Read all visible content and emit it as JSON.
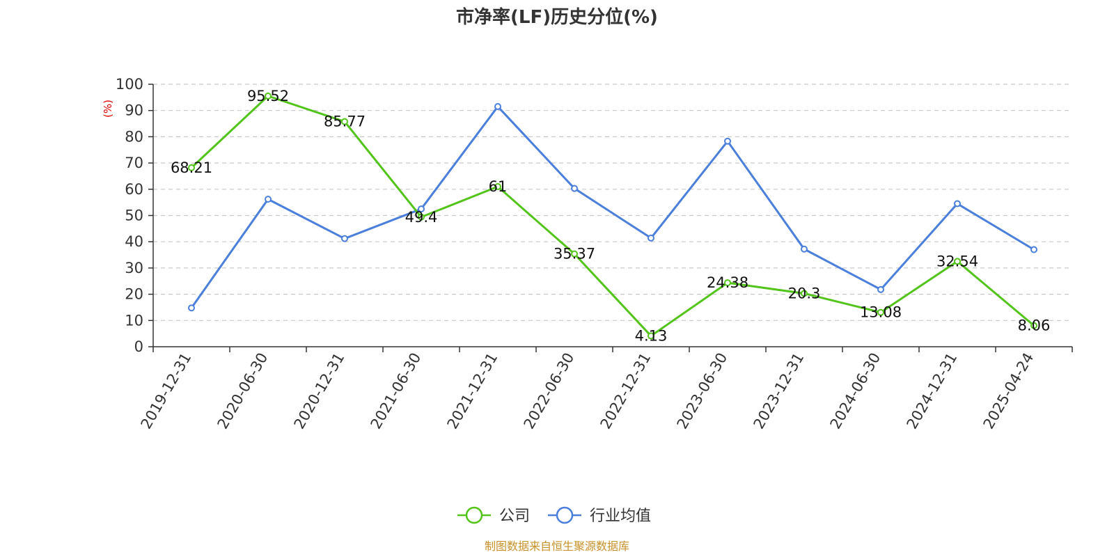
{
  "chart_data": {
    "type": "line",
    "title": "市净率(LF)历史分位(%)",
    "unit_label": "(%)",
    "categories": [
      "2019-12-31",
      "2020-06-30",
      "2020-12-31",
      "2021-06-30",
      "2021-12-31",
      "2022-06-30",
      "2022-12-31",
      "2023-06-30",
      "2023-12-31",
      "2024-06-30",
      "2024-12-31",
      "2025-04-24"
    ],
    "ylim": [
      0,
      100
    ],
    "yticks": [
      0,
      10,
      20,
      30,
      40,
      50,
      60,
      70,
      80,
      90,
      100
    ],
    "grid": true,
    "legend_position": "bottom",
    "series": [
      {
        "name": "公司",
        "color": "#52c41a",
        "show_labels": true,
        "values": [
          68.21,
          95.52,
          85.77,
          49.4,
          61,
          35.37,
          4.13,
          24.38,
          20.3,
          13.08,
          32.54,
          8.06
        ],
        "labels": [
          "68.21",
          "95.52",
          "85.77",
          "49.4",
          "61",
          "35.37",
          "4.13",
          "24.38",
          "20.3",
          "13.08",
          "32.54",
          "8.06"
        ]
      },
      {
        "name": "行业均值",
        "color": "#4a7fdc",
        "show_labels": false,
        "values": [
          14.8,
          56.2,
          41.2,
          52.5,
          91.5,
          60.3,
          41.4,
          78.3,
          37.2,
          21.8,
          54.5,
          37.0
        ]
      }
    ]
  },
  "source": "制图数据来自恒生聚源数据库"
}
